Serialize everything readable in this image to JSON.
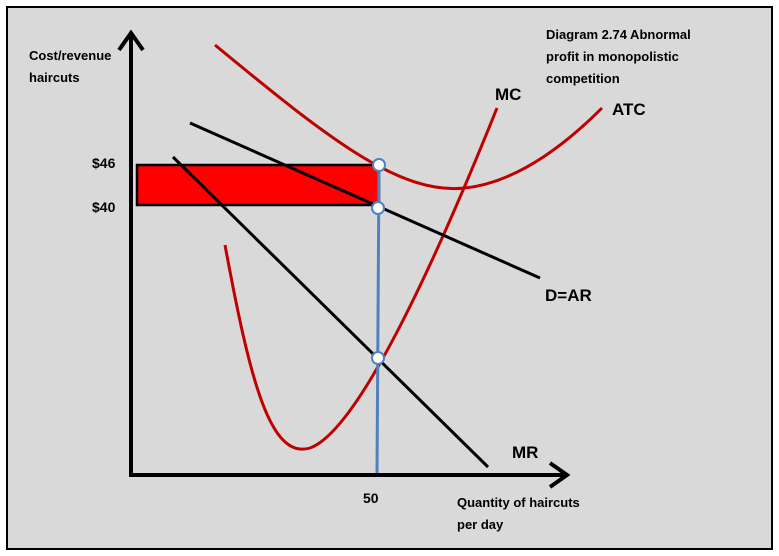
{
  "title": [
    "Diagram 2.74 Abnormal",
    "profit in monopolistic",
    "competition"
  ],
  "y_axis_label": [
    "Cost/revenue",
    "haircuts"
  ],
  "x_axis_label": [
    "Quantity of haircuts",
    "per day"
  ],
  "curves": {
    "mc": "MC",
    "atc": "ATC",
    "demand": "D=AR",
    "mr": "MR"
  },
  "price_labels": {
    "atc_level": "$46",
    "price": "$40"
  },
  "quantity_label": "50",
  "colors": {
    "cost_curves": "#c00000",
    "profit_area": "#ff0000",
    "quantity_line": "#4f81bd",
    "background": "#d9d9d9"
  }
}
